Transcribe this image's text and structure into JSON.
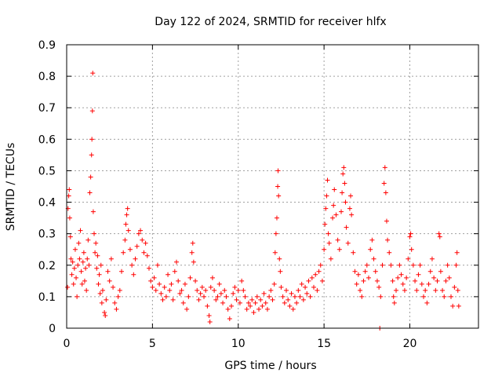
{
  "chart_data": {
    "type": "scatter",
    "title": "Day 122 of 2024, SRMTID for receiver hlfx",
    "xlabel": "GPS time / hours",
    "ylabel": "SRMTID / TECUs",
    "xlim": [
      0,
      24
    ],
    "ylim": [
      0,
      0.9
    ],
    "xticks": [
      0,
      5,
      10,
      15,
      20
    ],
    "xtick_labels": [
      "0",
      "5",
      "10",
      "15",
      "20"
    ],
    "yticks": [
      0,
      0.1,
      0.2,
      0.3,
      0.4,
      0.5,
      0.6,
      0.7,
      0.8,
      0.9
    ],
    "ytick_labels": [
      "0",
      "0.1",
      "0.2",
      "0.3",
      "0.4",
      "0.5",
      "0.6",
      "0.7",
      "0.8",
      "0.9"
    ],
    "grid": true,
    "marker": "plus",
    "color": "#ff0000",
    "series": [
      {
        "name": "SRMTID",
        "points": [
          [
            0.05,
            0.13
          ],
          [
            0.08,
            0.38
          ],
          [
            0.12,
            0.42
          ],
          [
            0.15,
            0.44
          ],
          [
            0.18,
            0.35
          ],
          [
            0.22,
            0.29
          ],
          [
            0.25,
            0.22
          ],
          [
            0.3,
            0.17
          ],
          [
            0.35,
            0.21
          ],
          [
            0.4,
            0.14
          ],
          [
            0.45,
            0.19
          ],
          [
            0.5,
            0.25
          ],
          [
            0.55,
            0.16
          ],
          [
            0.6,
            0.1
          ],
          [
            0.65,
            0.2
          ],
          [
            0.7,
            0.27
          ],
          [
            0.75,
            0.22
          ],
          [
            0.8,
            0.31
          ],
          [
            0.85,
            0.18
          ],
          [
            0.9,
            0.14
          ],
          [
            0.95,
            0.21
          ],
          [
            1.0,
            0.24
          ],
          [
            1.05,
            0.15
          ],
          [
            1.1,
            0.19
          ],
          [
            1.15,
            0.12
          ],
          [
            1.2,
            0.22
          ],
          [
            1.25,
            0.28
          ],
          [
            1.3,
            0.2
          ],
          [
            1.35,
            0.43
          ],
          [
            1.4,
            0.48
          ],
          [
            1.45,
            0.55
          ],
          [
            1.47,
            0.6
          ],
          [
            1.5,
            0.69
          ],
          [
            1.52,
            0.81
          ],
          [
            1.55,
            0.37
          ],
          [
            1.6,
            0.3
          ],
          [
            1.65,
            0.24
          ],
          [
            1.7,
            0.27
          ],
          [
            1.75,
            0.19
          ],
          [
            1.8,
            0.23
          ],
          [
            1.85,
            0.14
          ],
          [
            1.9,
            0.17
          ],
          [
            1.95,
            0.11
          ],
          [
            2.0,
            0.2
          ],
          [
            2.05,
            0.08
          ],
          [
            2.1,
            0.12
          ],
          [
            2.2,
            0.05
          ],
          [
            2.25,
            0.04
          ],
          [
            2.3,
            0.09
          ],
          [
            2.4,
            0.18
          ],
          [
            2.5,
            0.15
          ],
          [
            2.6,
            0.22
          ],
          [
            2.7,
            0.13
          ],
          [
            2.8,
            0.08
          ],
          [
            2.9,
            0.06
          ],
          [
            3.0,
            0.1
          ],
          [
            3.1,
            0.12
          ],
          [
            3.2,
            0.18
          ],
          [
            3.3,
            0.24
          ],
          [
            3.4,
            0.28
          ],
          [
            3.45,
            0.33
          ],
          [
            3.5,
            0.36
          ],
          [
            3.55,
            0.38
          ],
          [
            3.6,
            0.31
          ],
          [
            3.7,
            0.25
          ],
          [
            3.8,
            0.2
          ],
          [
            3.9,
            0.17
          ],
          [
            4.0,
            0.22
          ],
          [
            4.1,
            0.26
          ],
          [
            4.2,
            0.3
          ],
          [
            4.3,
            0.31
          ],
          [
            4.4,
            0.28
          ],
          [
            4.5,
            0.24
          ],
          [
            4.6,
            0.27
          ],
          [
            4.7,
            0.23
          ],
          [
            4.8,
            0.19
          ],
          [
            4.9,
            0.15
          ],
          [
            5.0,
            0.13
          ],
          [
            5.1,
            0.16
          ],
          [
            5.2,
            0.12
          ],
          [
            5.3,
            0.2
          ],
          [
            5.4,
            0.14
          ],
          [
            5.5,
            0.11
          ],
          [
            5.6,
            0.09
          ],
          [
            5.7,
            0.13
          ],
          [
            5.8,
            0.1
          ],
          [
            5.9,
            0.17
          ],
          [
            6.0,
            0.12
          ],
          [
            6.1,
            0.14
          ],
          [
            6.2,
            0.09
          ],
          [
            6.3,
            0.18
          ],
          [
            6.4,
            0.21
          ],
          [
            6.5,
            0.15
          ],
          [
            6.6,
            0.11
          ],
          [
            6.7,
            0.12
          ],
          [
            6.8,
            0.08
          ],
          [
            6.9,
            0.14
          ],
          [
            7.0,
            0.06
          ],
          [
            7.1,
            0.1
          ],
          [
            7.2,
            0.16
          ],
          [
            7.3,
            0.24
          ],
          [
            7.35,
            0.27
          ],
          [
            7.4,
            0.21
          ],
          [
            7.5,
            0.15
          ],
          [
            7.6,
            0.12
          ],
          [
            7.7,
            0.09
          ],
          [
            7.8,
            0.11
          ],
          [
            7.9,
            0.13
          ],
          [
            8.0,
            0.1
          ],
          [
            8.1,
            0.12
          ],
          [
            8.2,
            0.07
          ],
          [
            8.3,
            0.04
          ],
          [
            8.35,
            0.02
          ],
          [
            8.4,
            0.13
          ],
          [
            8.5,
            0.16
          ],
          [
            8.6,
            0.12
          ],
          [
            8.7,
            0.09
          ],
          [
            8.8,
            0.1
          ],
          [
            8.9,
            0.14
          ],
          [
            9.0,
            0.11
          ],
          [
            9.1,
            0.08
          ],
          [
            9.2,
            0.12
          ],
          [
            9.3,
            0.1
          ],
          [
            9.4,
            0.06
          ],
          [
            9.5,
            0.03
          ],
          [
            9.6,
            0.07
          ],
          [
            9.7,
            0.11
          ],
          [
            9.8,
            0.13
          ],
          [
            9.9,
            0.09
          ],
          [
            10.0,
            0.12
          ],
          [
            10.1,
            0.08
          ],
          [
            10.2,
            0.15
          ],
          [
            10.3,
            0.12
          ],
          [
            10.4,
            0.1
          ],
          [
            10.5,
            0.06
          ],
          [
            10.6,
            0.08
          ],
          [
            10.7,
            0.07
          ],
          [
            10.8,
            0.09
          ],
          [
            10.9,
            0.05
          ],
          [
            11.0,
            0.08
          ],
          [
            11.1,
            0.1
          ],
          [
            11.2,
            0.06
          ],
          [
            11.3,
            0.09
          ],
          [
            11.4,
            0.07
          ],
          [
            11.5,
            0.11
          ],
          [
            11.6,
            0.08
          ],
          [
            11.7,
            0.06
          ],
          [
            11.8,
            0.1
          ],
          [
            11.9,
            0.12
          ],
          [
            12.0,
            0.09
          ],
          [
            12.1,
            0.14
          ],
          [
            12.15,
            0.24
          ],
          [
            12.2,
            0.3
          ],
          [
            12.25,
            0.35
          ],
          [
            12.3,
            0.45
          ],
          [
            12.32,
            0.5
          ],
          [
            12.35,
            0.42
          ],
          [
            12.4,
            0.22
          ],
          [
            12.45,
            0.18
          ],
          [
            12.5,
            0.13
          ],
          [
            12.6,
            0.1
          ],
          [
            12.7,
            0.08
          ],
          [
            12.8,
            0.12
          ],
          [
            12.9,
            0.09
          ],
          [
            13.0,
            0.07
          ],
          [
            13.1,
            0.11
          ],
          [
            13.2,
            0.06
          ],
          [
            13.3,
            0.1
          ],
          [
            13.4,
            0.08
          ],
          [
            13.5,
            0.12
          ],
          [
            13.6,
            0.1
          ],
          [
            13.7,
            0.14
          ],
          [
            13.8,
            0.09
          ],
          [
            13.9,
            0.13
          ],
          [
            14.0,
            0.11
          ],
          [
            14.1,
            0.15
          ],
          [
            14.2,
            0.1
          ],
          [
            14.3,
            0.16
          ],
          [
            14.4,
            0.13
          ],
          [
            14.5,
            0.17
          ],
          [
            14.6,
            0.12
          ],
          [
            14.7,
            0.18
          ],
          [
            14.8,
            0.2
          ],
          [
            14.9,
            0.15
          ],
          [
            15.0,
            0.25
          ],
          [
            15.05,
            0.33
          ],
          [
            15.1,
            0.38
          ],
          [
            15.15,
            0.42
          ],
          [
            15.2,
            0.47
          ],
          [
            15.25,
            0.3
          ],
          [
            15.3,
            0.27
          ],
          [
            15.4,
            0.22
          ],
          [
            15.5,
            0.35
          ],
          [
            15.55,
            0.39
          ],
          [
            15.6,
            0.44
          ],
          [
            15.7,
            0.36
          ],
          [
            15.8,
            0.28
          ],
          [
            15.9,
            0.25
          ],
          [
            16.0,
            0.37
          ],
          [
            16.05,
            0.43
          ],
          [
            16.1,
            0.49
          ],
          [
            16.15,
            0.51
          ],
          [
            16.2,
            0.46
          ],
          [
            16.25,
            0.4
          ],
          [
            16.3,
            0.32
          ],
          [
            16.4,
            0.27
          ],
          [
            16.5,
            0.38
          ],
          [
            16.55,
            0.42
          ],
          [
            16.6,
            0.36
          ],
          [
            16.7,
            0.24
          ],
          [
            16.8,
            0.18
          ],
          [
            16.9,
            0.14
          ],
          [
            17.0,
            0.17
          ],
          [
            17.1,
            0.12
          ],
          [
            17.2,
            0.1
          ],
          [
            17.3,
            0.15
          ],
          [
            17.4,
            0.18
          ],
          [
            17.5,
            0.2
          ],
          [
            17.6,
            0.16
          ],
          [
            17.7,
            0.25
          ],
          [
            17.8,
            0.28
          ],
          [
            17.9,
            0.22
          ],
          [
            18.0,
            0.18
          ],
          [
            18.1,
            0.15
          ],
          [
            18.2,
            0.13
          ],
          [
            18.3,
            0.1
          ],
          [
            18.4,
            0.2
          ],
          [
            18.5,
            0.46
          ],
          [
            18.55,
            0.51
          ],
          [
            18.6,
            0.43
          ],
          [
            18.65,
            0.34
          ],
          [
            18.7,
            0.28
          ],
          [
            18.8,
            0.24
          ],
          [
            18.9,
            0.2
          ],
          [
            19.0,
            0.15
          ],
          [
            19.05,
            0.1
          ],
          [
            19.1,
            0.08
          ],
          [
            19.2,
            0.12
          ],
          [
            19.3,
            0.16
          ],
          [
            19.4,
            0.2
          ],
          [
            19.5,
            0.17
          ],
          [
            19.6,
            0.14
          ],
          [
            19.7,
            0.12
          ],
          [
            19.8,
            0.16
          ],
          [
            19.9,
            0.22
          ],
          [
            20.0,
            0.29
          ],
          [
            20.05,
            0.3
          ],
          [
            20.1,
            0.25
          ],
          [
            20.2,
            0.2
          ],
          [
            20.3,
            0.15
          ],
          [
            20.4,
            0.12
          ],
          [
            20.5,
            0.17
          ],
          [
            20.6,
            0.2
          ],
          [
            20.7,
            0.14
          ],
          [
            20.8,
            0.1
          ],
          [
            20.9,
            0.12
          ],
          [
            21.0,
            0.08
          ],
          [
            21.1,
            0.14
          ],
          [
            21.2,
            0.18
          ],
          [
            21.3,
            0.22
          ],
          [
            21.4,
            0.16
          ],
          [
            21.5,
            0.12
          ],
          [
            21.6,
            0.15
          ],
          [
            21.7,
            0.3
          ],
          [
            21.75,
            0.29
          ],
          [
            21.8,
            0.18
          ],
          [
            21.9,
            0.12
          ],
          [
            22.0,
            0.1
          ],
          [
            22.1,
            0.15
          ],
          [
            22.2,
            0.2
          ],
          [
            22.3,
            0.16
          ],
          [
            22.4,
            0.1
          ],
          [
            22.5,
            0.07
          ],
          [
            22.6,
            0.13
          ],
          [
            22.7,
            0.2
          ],
          [
            22.75,
            0.24
          ],
          [
            22.8,
            0.12
          ],
          [
            22.85,
            0.07
          ],
          [
            18.25,
            0.0
          ]
        ]
      }
    ]
  }
}
